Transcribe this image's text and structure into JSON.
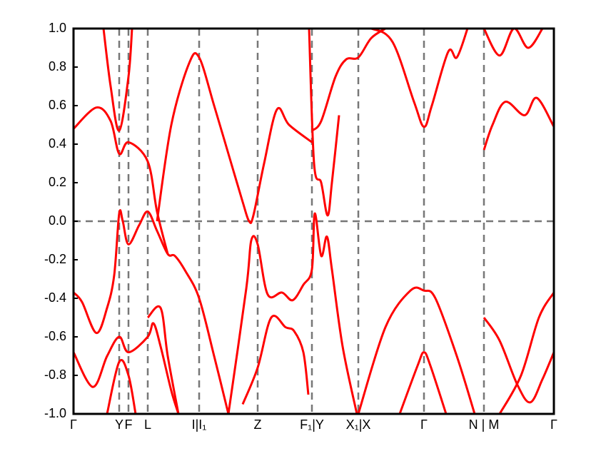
{
  "chart_data": {
    "type": "line",
    "line_color": "#ff0000",
    "line_width": 3,
    "xlim": [
      0,
      673
    ],
    "ylim": [
      -1,
      1
    ],
    "xticks": [
      {
        "value": 0,
        "label": "Γ"
      },
      {
        "value": 64,
        "label": "Y"
      },
      {
        "value": 77,
        "label": "F"
      },
      {
        "value": 104,
        "label": "L"
      },
      {
        "value": 176,
        "label": "I|I₁"
      },
      {
        "value": 258,
        "label": "Z"
      },
      {
        "value": 334,
        "label": "F₁|Y"
      },
      {
        "value": 399,
        "label": "X₁|X"
      },
      {
        "value": 491,
        "label": "Γ"
      },
      {
        "value": 575,
        "label": "N | M"
      },
      {
        "value": 673,
        "label": "Γ"
      }
    ],
    "yticks": [
      {
        "value": -1,
        "label": "-1.0"
      },
      -0.8,
      -0.6,
      -0.4,
      -0.2,
      {
        "value": 0,
        "label": "0.0"
      },
      0.2,
      0.4,
      0.6,
      0.8,
      {
        "value": 1,
        "label": "1.0"
      }
    ],
    "vlines_dashed": true,
    "hline": 0,
    "series": [
      {
        "x": [
          0,
          12,
          32,
          47,
          57,
          64,
          69,
          77,
          92,
          104,
          117,
          132,
          142,
          157,
          176,
          197,
          217
        ],
        "values": [
          -0.37,
          -0.42,
          -0.58,
          -0.45,
          -0.28,
          0.04,
          0.0,
          -0.12,
          -0.02,
          0.05,
          -0.05,
          -0.17,
          -0.18,
          -0.26,
          -0.4,
          -0.7,
          -1.0
        ]
      },
      {
        "x": [
          0,
          32,
          52,
          64,
          77,
          104,
          117,
          132
        ],
        "values": [
          0.48,
          0.59,
          0.52,
          0.35,
          0.41,
          0.31,
          0.05,
          -0.17
        ]
      },
      {
        "x": [
          117,
          137,
          162,
          176,
          197,
          217,
          237,
          246,
          252,
          267,
          285,
          302,
          334
        ],
        "values": [
          0.0,
          0.5,
          0.82,
          0.85,
          0.6,
          0.35,
          0.1,
          0.0,
          0.03,
          0.3,
          0.58,
          0.5,
          0.41
        ]
      },
      {
        "x": [
          217,
          242,
          249,
          258,
          272,
          292,
          307,
          322,
          334,
          338,
          347,
          355,
          362,
          377,
          397
        ],
        "values": [
          -1.0,
          -0.35,
          -0.1,
          -0.12,
          -0.38,
          -0.37,
          -0.41,
          -0.33,
          -0.25,
          0.04,
          -0.18,
          -0.08,
          -0.25,
          -0.65,
          -1.0
        ]
      },
      {
        "x": [
          334,
          347,
          367,
          382,
          399,
          417,
          437
        ],
        "values": [
          0.47,
          0.52,
          0.75,
          0.84,
          0.85,
          0.95,
          1.0
        ]
      },
      {
        "x": [
          399,
          417,
          447,
          477,
          491,
          502,
          525,
          537,
          552
        ],
        "values": [
          1.0,
          1.0,
          0.93,
          0.62,
          0.49,
          0.6,
          0.88,
          0.85,
          1.0
        ]
      },
      {
        "x": [
          330,
          337,
          347,
          356,
          362,
          372
        ],
        "values": [
          1.0,
          0.3,
          0.2,
          0.03,
          0.2,
          0.55
        ]
      },
      {
        "x": [
          399,
          437,
          472,
          491,
          507,
          537,
          562
        ],
        "values": [
          -1.0,
          -0.55,
          -0.36,
          -0.36,
          -0.4,
          -0.7,
          -1.0
        ]
      },
      {
        "x": [
          457,
          482,
          491,
          500,
          522
        ],
        "values": [
          -1.0,
          -0.75,
          -0.68,
          -0.75,
          -1.0
        ]
      },
      {
        "x": [
          575,
          597,
          622,
          640,
          657,
          673
        ],
        "values": [
          -0.5,
          -0.62,
          -0.85,
          -0.94,
          -0.82,
          -0.68
        ]
      },
      {
        "x": [
          597,
          627,
          652,
          673
        ],
        "values": [
          -1.0,
          -0.8,
          -0.5,
          -0.37
        ]
      },
      {
        "x": [
          575,
          587,
          605,
          632,
          649,
          673
        ],
        "values": [
          0.37,
          0.5,
          0.62,
          0.55,
          0.64,
          0.49
        ]
      },
      {
        "x": [
          575,
          597,
          617,
          637,
          657
        ],
        "values": [
          1.0,
          0.86,
          1.0,
          0.9,
          1.0
        ]
      },
      {
        "x": [
          0,
          27,
          47,
          64,
          77,
          104,
          112,
          122,
          137,
          147
        ],
        "values": [
          -0.68,
          -0.86,
          -0.7,
          -0.6,
          -0.68,
          -0.6,
          -0.53,
          -0.65,
          -0.88,
          -1.0
        ]
      },
      {
        "x": [
          47,
          64,
          77,
          87
        ],
        "values": [
          -1.0,
          -0.73,
          -0.8,
          -1.0
        ]
      },
      {
        "x": [
          104,
          122,
          132,
          147
        ],
        "values": [
          -0.5,
          -0.45,
          -0.7,
          -1.0
        ]
      },
      {
        "x": [
          42,
          52,
          64,
          77,
          82
        ],
        "values": [
          1.0,
          0.7,
          0.47,
          0.75,
          1.0
        ]
      },
      {
        "x": [
          237,
          258,
          277,
          297,
          309,
          322,
          329
        ],
        "values": [
          -0.95,
          -0.76,
          -0.5,
          -0.55,
          -0.57,
          -0.68,
          -0.9
        ]
      }
    ]
  }
}
